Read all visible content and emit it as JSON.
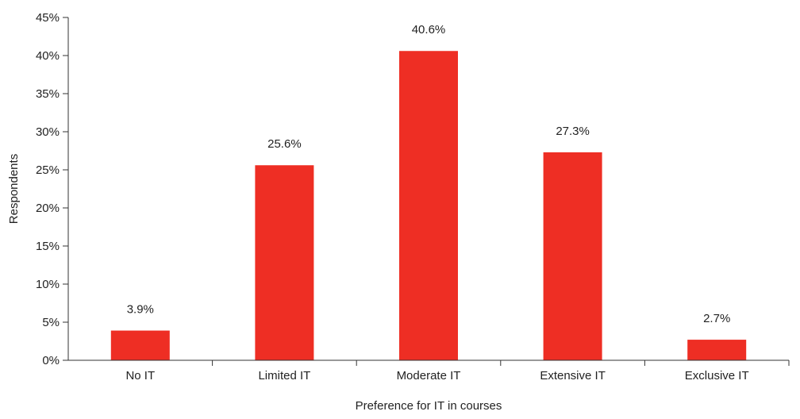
{
  "chart_data": {
    "type": "bar",
    "title": "",
    "xlabel": "Preference for IT in courses",
    "ylabel": "Respondents",
    "categories": [
      "No IT",
      "Limited IT",
      "Moderate IT",
      "Extensive IT",
      "Exclusive IT"
    ],
    "values": [
      3.9,
      25.6,
      40.6,
      27.3,
      2.7
    ],
    "data_labels": [
      "3.9%",
      "25.6%",
      "40.6%",
      "27.3%",
      "2.7%"
    ],
    "ylim": [
      0,
      45
    ],
    "y_ticks": [
      0,
      5,
      10,
      15,
      20,
      25,
      30,
      35,
      40,
      45
    ],
    "y_tick_labels": [
      "0%",
      "5%",
      "10%",
      "15%",
      "20%",
      "25%",
      "30%",
      "35%",
      "40%",
      "45%"
    ],
    "grid": false,
    "legend": "none",
    "bar_color": "#ee2e24"
  }
}
